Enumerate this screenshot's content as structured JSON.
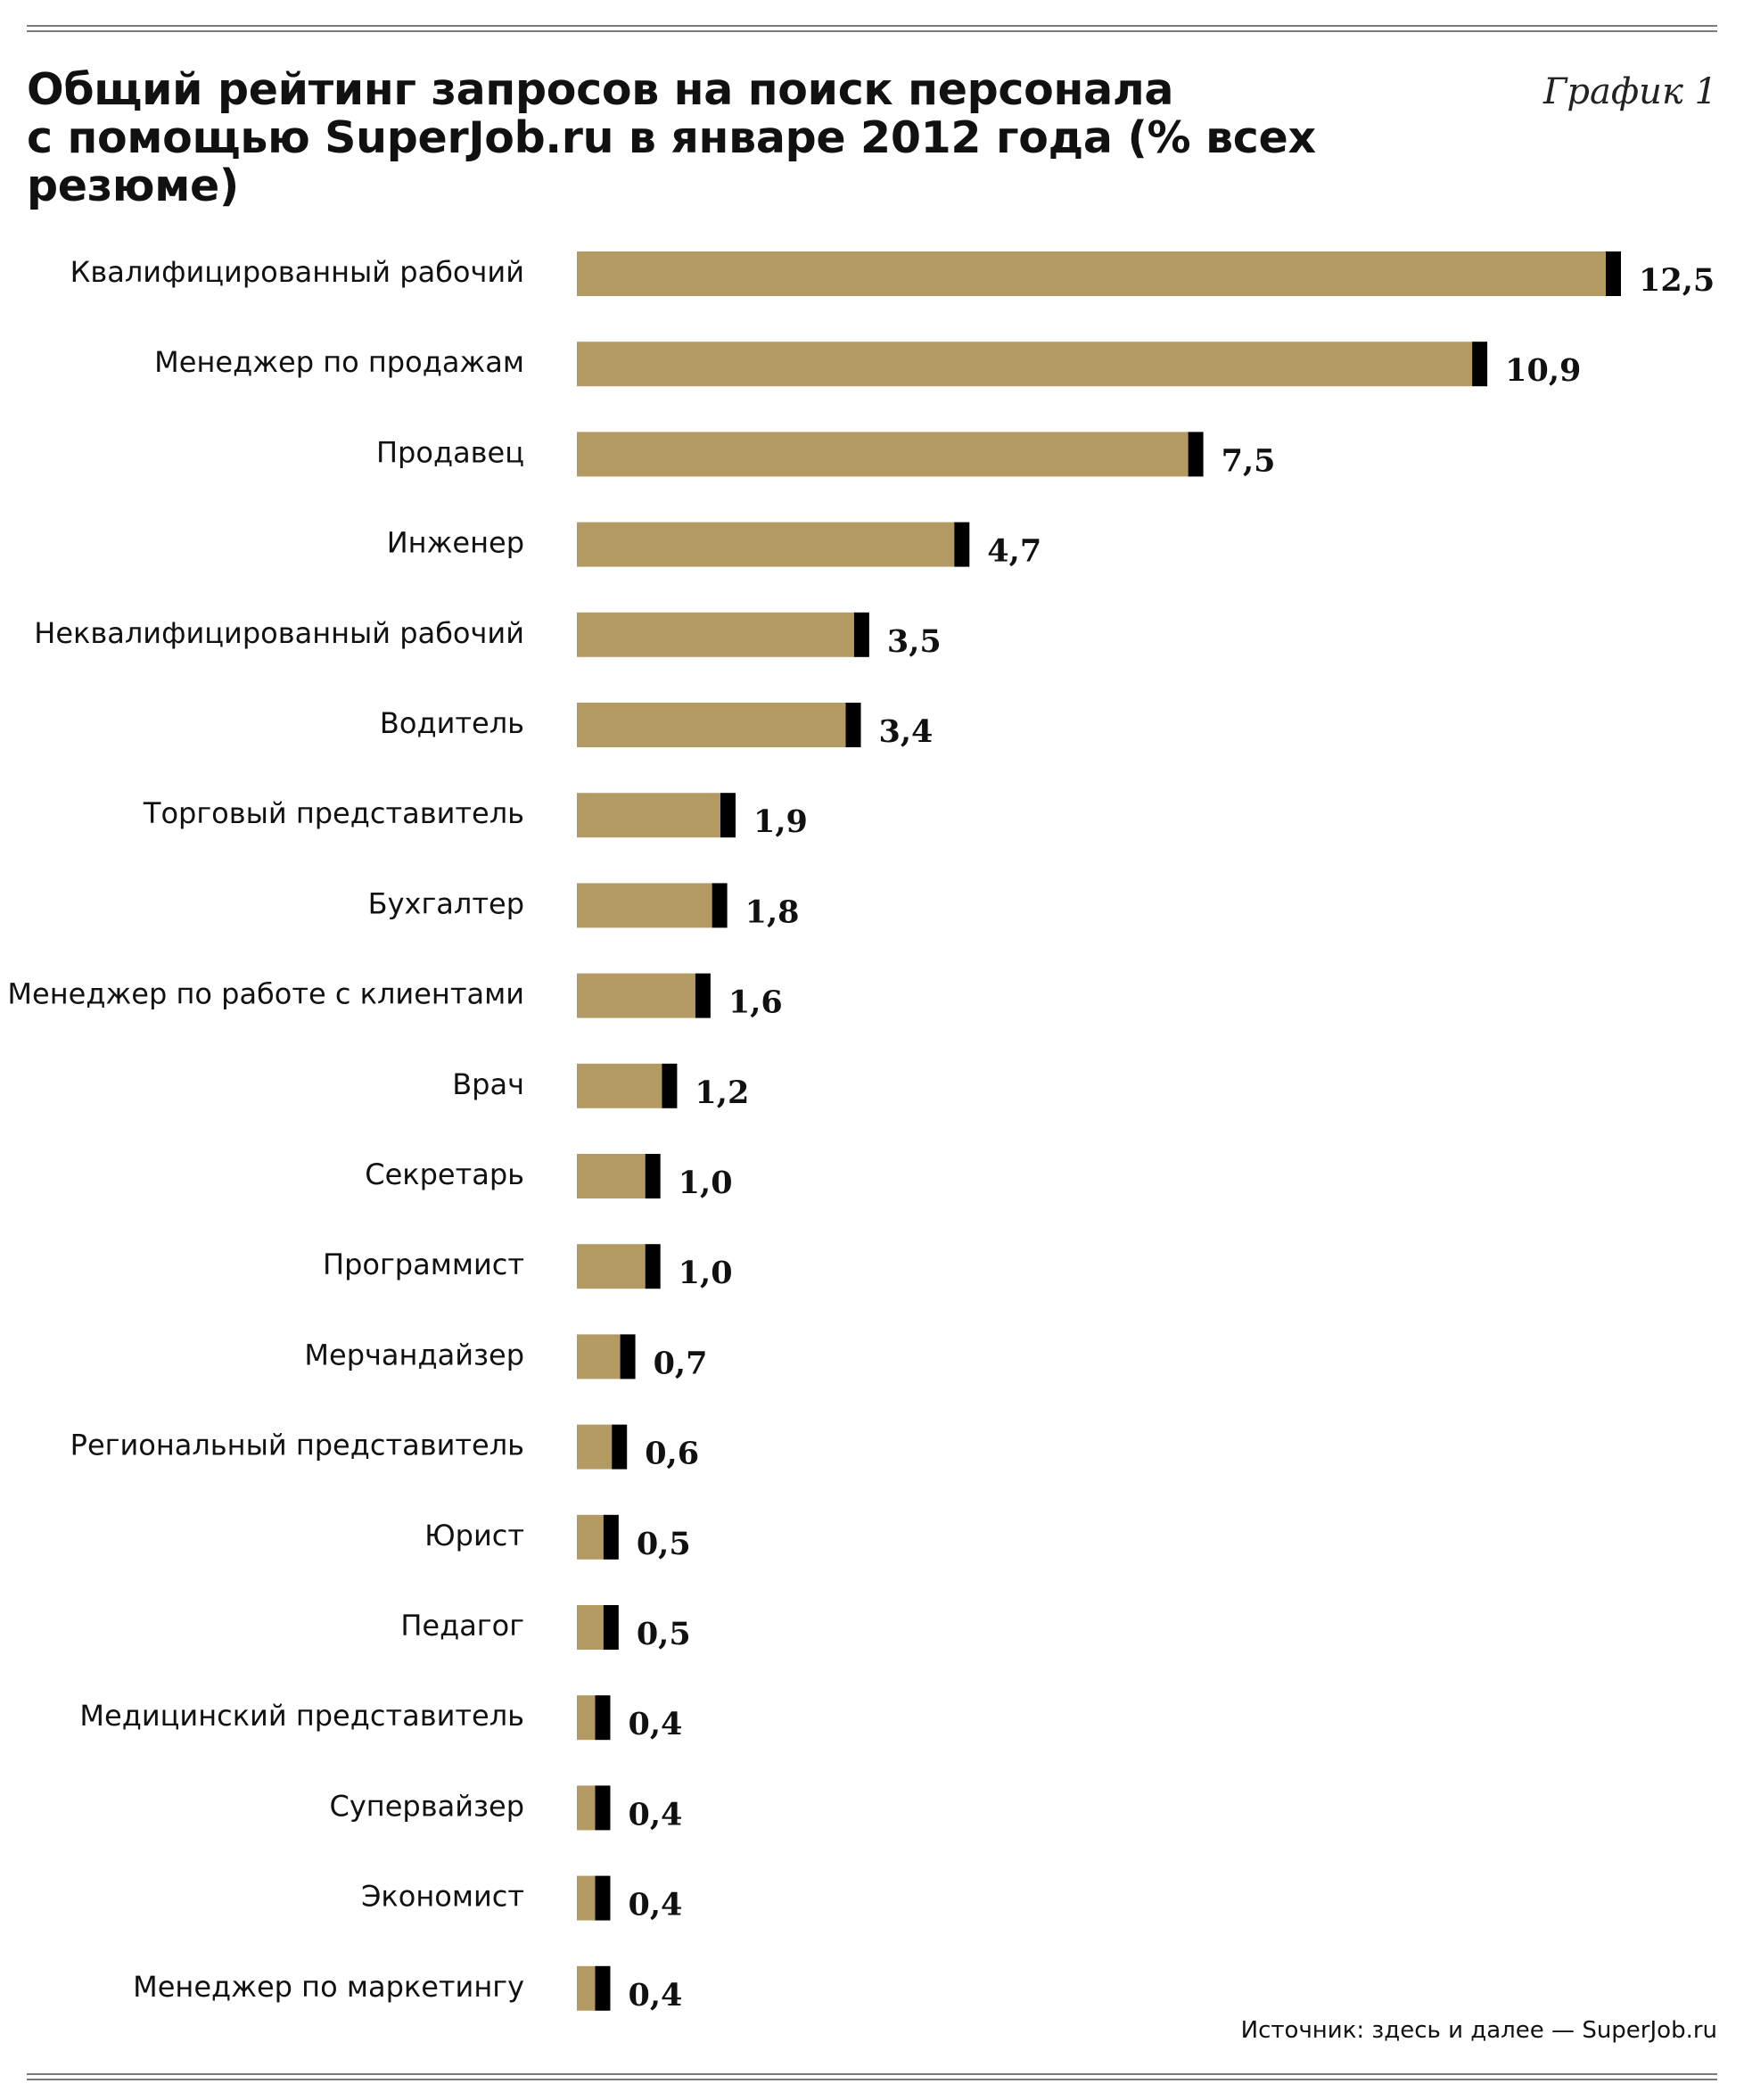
{
  "header": {
    "title": "Общий рейтинг запросов на поиск персонала\nс помощью SuperJob.ru в январе 2012 года (% всех резюме)",
    "figure_label": "График 1"
  },
  "footer": {
    "source": "Источник: здесь и далее — SuperJob.ru"
  },
  "colors": {
    "bar": "#b39a62",
    "bar_cap": "#000000",
    "text": "#111111",
    "rule": "#7a7a7a"
  },
  "chart_data": {
    "type": "bar",
    "orientation": "horizontal",
    "title": "Общий рейтинг запросов на поиск персонала с помощью SuperJob.ru в январе 2012 года (% всех резюме)",
    "categories": [
      "Квалифицированный рабочий",
      "Менеджер по продажам",
      "Продавец",
      "Инженер",
      "Неквалифицированный рабочий",
      "Водитель",
      "Торговый представитель",
      "Бухгалтер",
      "Менеджер по работе с клиентами",
      "Врач",
      "Секретарь",
      "Программист",
      "Мерчандайзер",
      "Региональный представитель",
      "Юрист",
      "Педагог",
      "Медицинский представитель",
      "Супервайзер",
      "Экономист",
      "Менеджер по маркетингу"
    ],
    "values": [
      12.5,
      10.9,
      7.5,
      4.7,
      3.5,
      3.4,
      1.9,
      1.8,
      1.6,
      1.2,
      1.0,
      1.0,
      0.7,
      0.6,
      0.5,
      0.5,
      0.4,
      0.4,
      0.4,
      0.4
    ],
    "value_labels": [
      "12,5",
      "10,9",
      "7,5",
      "4,7",
      "3,5",
      "3,4",
      "1,9",
      "1,8",
      "1,6",
      "1,2",
      "1,0",
      "1,0",
      "0,7",
      "0,6",
      "0,5",
      "0,5",
      "0,4",
      "0,4",
      "0,4",
      "0,4"
    ],
    "xlim": [
      0,
      12.5
    ],
    "grid": false,
    "legend": "none"
  }
}
